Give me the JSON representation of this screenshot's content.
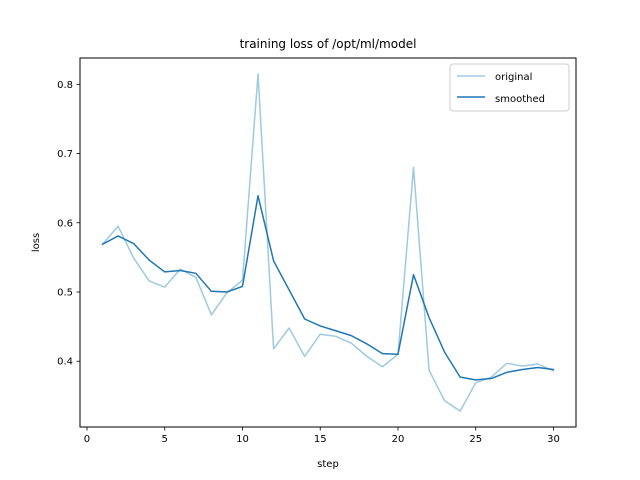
{
  "chart_data": {
    "type": "line",
    "title": "training loss of /opt/ml/model",
    "xlabel": "step",
    "ylabel": "loss",
    "xlim": [
      -0.45,
      31.45
    ],
    "ylim": [
      0.305,
      0.838
    ],
    "xticks": [
      0,
      5,
      10,
      15,
      20,
      25,
      30
    ],
    "yticks": [
      0.4,
      0.5,
      0.6,
      0.7,
      0.8
    ],
    "ytick_labels": [
      "0.4",
      "0.5",
      "0.6",
      "0.7",
      "0.8"
    ],
    "grid": false,
    "legend_position": "top-right",
    "x": [
      1,
      2,
      3,
      4,
      5,
      6,
      7,
      8,
      9,
      10,
      11,
      12,
      13,
      14,
      15,
      16,
      17,
      18,
      19,
      20,
      21,
      22,
      23,
      24,
      25,
      26,
      27,
      28,
      29,
      30
    ],
    "series": [
      {
        "name": "original",
        "color": "#9ecae1",
        "values": [
          0.569,
          0.595,
          0.549,
          0.516,
          0.507,
          0.533,
          0.521,
          0.467,
          0.499,
          0.517,
          0.815,
          0.418,
          0.448,
          0.407,
          0.439,
          0.436,
          0.426,
          0.407,
          0.392,
          0.41,
          0.68,
          0.387,
          0.343,
          0.328,
          0.369,
          0.377,
          0.397,
          0.393,
          0.396,
          0.386
        ]
      },
      {
        "name": "smoothed",
        "color": "#1f77b4",
        "values": [
          0.569,
          0.581,
          0.57,
          0.546,
          0.529,
          0.531,
          0.527,
          0.501,
          0.5,
          0.508,
          0.639,
          0.545,
          0.503,
          0.461,
          0.451,
          0.444,
          0.437,
          0.425,
          0.411,
          0.41,
          0.525,
          0.463,
          0.413,
          0.377,
          0.373,
          0.375,
          0.384,
          0.388,
          0.391,
          0.388
        ]
      }
    ]
  }
}
